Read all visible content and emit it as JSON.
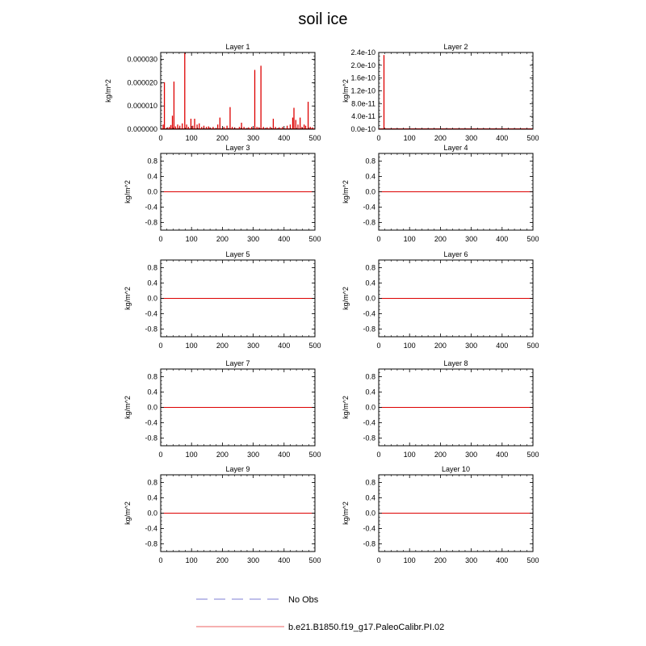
{
  "figure": {
    "title": "soil ice",
    "legend": [
      {
        "label": "No Obs",
        "color": "#9999dd",
        "style": "dashed"
      },
      {
        "label": "b.e21.B1850.f19_g17.PaleoCalibr.PI.02",
        "color": "#f08080",
        "style": "solid"
      }
    ]
  },
  "chart_data": [
    {
      "type": "line",
      "title": "Layer 1",
      "ylabel": "kg/m^2",
      "xlim": [
        0,
        500
      ],
      "ylim": [
        0,
        3.3e-05
      ],
      "xticks": [
        "0",
        "100",
        "200",
        "300",
        "400",
        "500"
      ],
      "yticks": [
        {
          "value": 0,
          "label": "0.000000"
        },
        {
          "value": 1e-05,
          "label": "0.000010"
        },
        {
          "value": 2e-05,
          "label": "0.000020"
        },
        {
          "value": 3e-05,
          "label": "0.000030"
        }
      ],
      "color": "#dd0000",
      "spikes": [
        [
          8,
          2e-06
        ],
        [
          12,
          2.02e-05
        ],
        [
          22,
          8e-07
        ],
        [
          28,
          1e-06
        ],
        [
          33,
          1.8e-06
        ],
        [
          38,
          5.8e-06
        ],
        [
          43,
          2.05e-05
        ],
        [
          48,
          1.2e-06
        ],
        [
          55,
          2e-06
        ],
        [
          62,
          1.5e-06
        ],
        [
          70,
          2.5e-06
        ],
        [
          78,
          3.28e-05
        ],
        [
          84,
          2e-06
        ],
        [
          90,
          1e-06
        ],
        [
          98,
          4.5e-06
        ],
        [
          104,
          1.5e-06
        ],
        [
          110,
          4.5e-06
        ],
        [
          118,
          2e-06
        ],
        [
          125,
          2.5e-06
        ],
        [
          133,
          1e-06
        ],
        [
          140,
          1.5e-06
        ],
        [
          148,
          1e-06
        ],
        [
          155,
          1.2e-06
        ],
        [
          160,
          8e-07
        ],
        [
          170,
          1e-06
        ],
        [
          185,
          2e-06
        ],
        [
          192,
          5e-06
        ],
        [
          205,
          1e-06
        ],
        [
          215,
          1.5e-06
        ],
        [
          225,
          9.5e-06
        ],
        [
          232,
          1e-06
        ],
        [
          240,
          8e-07
        ],
        [
          255,
          1e-06
        ],
        [
          262,
          2.8e-06
        ],
        [
          270,
          1e-06
        ],
        [
          285,
          8e-07
        ],
        [
          295,
          1e-06
        ],
        [
          305,
          2.55e-05
        ],
        [
          312,
          1e-06
        ],
        [
          318,
          8e-07
        ],
        [
          325,
          2.73e-05
        ],
        [
          333,
          1e-06
        ],
        [
          345,
          8e-07
        ],
        [
          355,
          1e-06
        ],
        [
          365,
          4.5e-06
        ],
        [
          372,
          1e-06
        ],
        [
          385,
          8e-07
        ],
        [
          395,
          1e-06
        ],
        [
          410,
          1.5e-06
        ],
        [
          420,
          2e-06
        ],
        [
          428,
          5e-06
        ],
        [
          432,
          9.2e-06
        ],
        [
          438,
          4e-06
        ],
        [
          445,
          2e-06
        ],
        [
          452,
          5e-06
        ],
        [
          458,
          1e-06
        ],
        [
          465,
          2e-06
        ],
        [
          470,
          1.5e-06
        ],
        [
          478,
          1.18e-05
        ],
        [
          485,
          1e-06
        ],
        [
          492,
          8e-07
        ]
      ]
    },
    {
      "type": "line",
      "title": "Layer 2",
      "ylabel": "kg/m^2",
      "xlim": [
        0,
        500
      ],
      "ylim": [
        0,
        2.4e-10
      ],
      "xticks": [
        "0",
        "100",
        "200",
        "300",
        "400",
        "500"
      ],
      "yticks": [
        {
          "value": 0,
          "label": "0.0e-10"
        },
        {
          "value": 4e-11,
          "label": "4.0e-11"
        },
        {
          "value": 8e-11,
          "label": "8.0e-11"
        },
        {
          "value": 1.2e-10,
          "label": "1.2e-10"
        },
        {
          "value": 1.6e-10,
          "label": "1.6e-10"
        },
        {
          "value": 2e-10,
          "label": "2.0e-10"
        },
        {
          "value": 2.4e-10,
          "label": "2.4e-10"
        }
      ],
      "color": "#dd0000",
      "spikes": [
        [
          17,
          2.32e-10
        ]
      ]
    },
    {
      "type": "line",
      "title": "Layer 3",
      "ylabel": "kg/m^2",
      "xlim": [
        0,
        500
      ],
      "ylim": [
        -1,
        1
      ],
      "xticks": [
        "0",
        "100",
        "200",
        "300",
        "400",
        "500"
      ],
      "yticks": [
        {
          "value": 0.8,
          "label": "0.8"
        },
        {
          "value": 0.4,
          "label": "0.4"
        },
        {
          "value": 0,
          "label": "0.0"
        },
        {
          "value": -0.4,
          "label": "-0.4"
        },
        {
          "value": -0.8,
          "label": "-0.8"
        }
      ],
      "color": "#dd0000",
      "constant": 0
    },
    {
      "type": "line",
      "title": "Layer 4",
      "ylabel": "kg/m^2",
      "xlim": [
        0,
        500
      ],
      "ylim": [
        -1,
        1
      ],
      "xticks": [
        "0",
        "100",
        "200",
        "300",
        "400",
        "500"
      ],
      "yticks": [
        {
          "value": 0.8,
          "label": "0.8"
        },
        {
          "value": 0.4,
          "label": "0.4"
        },
        {
          "value": 0,
          "label": "0.0"
        },
        {
          "value": -0.4,
          "label": "-0.4"
        },
        {
          "value": -0.8,
          "label": "-0.8"
        }
      ],
      "color": "#dd0000",
      "constant": 0
    },
    {
      "type": "line",
      "title": "Layer 5",
      "ylabel": "kg/m^2",
      "xlim": [
        0,
        500
      ],
      "ylim": [
        -1,
        1
      ],
      "xticks": [
        "0",
        "100",
        "200",
        "300",
        "400",
        "500"
      ],
      "yticks": [
        {
          "value": 0.8,
          "label": "0.8"
        },
        {
          "value": 0.4,
          "label": "0.4"
        },
        {
          "value": 0,
          "label": "0.0"
        },
        {
          "value": -0.4,
          "label": "-0.4"
        },
        {
          "value": -0.8,
          "label": "-0.8"
        }
      ],
      "color": "#dd0000",
      "constant": 0
    },
    {
      "type": "line",
      "title": "Layer 6",
      "ylabel": "kg/m^2",
      "xlim": [
        0,
        500
      ],
      "ylim": [
        -1,
        1
      ],
      "xticks": [
        "0",
        "100",
        "200",
        "300",
        "400",
        "500"
      ],
      "yticks": [
        {
          "value": 0.8,
          "label": "0.8"
        },
        {
          "value": 0.4,
          "label": "0.4"
        },
        {
          "value": 0,
          "label": "0.0"
        },
        {
          "value": -0.4,
          "label": "-0.4"
        },
        {
          "value": -0.8,
          "label": "-0.8"
        }
      ],
      "color": "#dd0000",
      "constant": 0
    },
    {
      "type": "line",
      "title": "Layer 7",
      "ylabel": "kg/m^2",
      "xlim": [
        0,
        500
      ],
      "ylim": [
        -1,
        1
      ],
      "xticks": [
        "0",
        "100",
        "200",
        "300",
        "400",
        "500"
      ],
      "yticks": [
        {
          "value": 0.8,
          "label": "0.8"
        },
        {
          "value": 0.4,
          "label": "0.4"
        },
        {
          "value": 0,
          "label": "0.0"
        },
        {
          "value": -0.4,
          "label": "-0.4"
        },
        {
          "value": -0.8,
          "label": "-0.8"
        }
      ],
      "color": "#dd0000",
      "constant": 0
    },
    {
      "type": "line",
      "title": "Layer 8",
      "ylabel": "kg/m^2",
      "xlim": [
        0,
        500
      ],
      "ylim": [
        -1,
        1
      ],
      "xticks": [
        "0",
        "100",
        "200",
        "300",
        "400",
        "500"
      ],
      "yticks": [
        {
          "value": 0.8,
          "label": "0.8"
        },
        {
          "value": 0.4,
          "label": "0.4"
        },
        {
          "value": 0,
          "label": "0.0"
        },
        {
          "value": -0.4,
          "label": "-0.4"
        },
        {
          "value": -0.8,
          "label": "-0.8"
        }
      ],
      "color": "#dd0000",
      "constant": 0
    },
    {
      "type": "line",
      "title": "Layer 9",
      "ylabel": "kg/m^2",
      "xlim": [
        0,
        500
      ],
      "ylim": [
        -1,
        1
      ],
      "xticks": [
        "0",
        "100",
        "200",
        "300",
        "400",
        "500"
      ],
      "yticks": [
        {
          "value": 0.8,
          "label": "0.8"
        },
        {
          "value": 0.4,
          "label": "0.4"
        },
        {
          "value": 0,
          "label": "0.0"
        },
        {
          "value": -0.4,
          "label": "-0.4"
        },
        {
          "value": -0.8,
          "label": "-0.8"
        }
      ],
      "color": "#dd0000",
      "constant": 0
    },
    {
      "type": "line",
      "title": "Layer 10",
      "ylabel": "kg/m^2",
      "xlim": [
        0,
        500
      ],
      "ylim": [
        -1,
        1
      ],
      "xticks": [
        "0",
        "100",
        "200",
        "300",
        "400",
        "500"
      ],
      "yticks": [
        {
          "value": 0.8,
          "label": "0.8"
        },
        {
          "value": 0.4,
          "label": "0.4"
        },
        {
          "value": 0,
          "label": "0.0"
        },
        {
          "value": -0.4,
          "label": "-0.4"
        },
        {
          "value": -0.8,
          "label": "-0.8"
        }
      ],
      "color": "#dd0000",
      "constant": 0
    }
  ]
}
